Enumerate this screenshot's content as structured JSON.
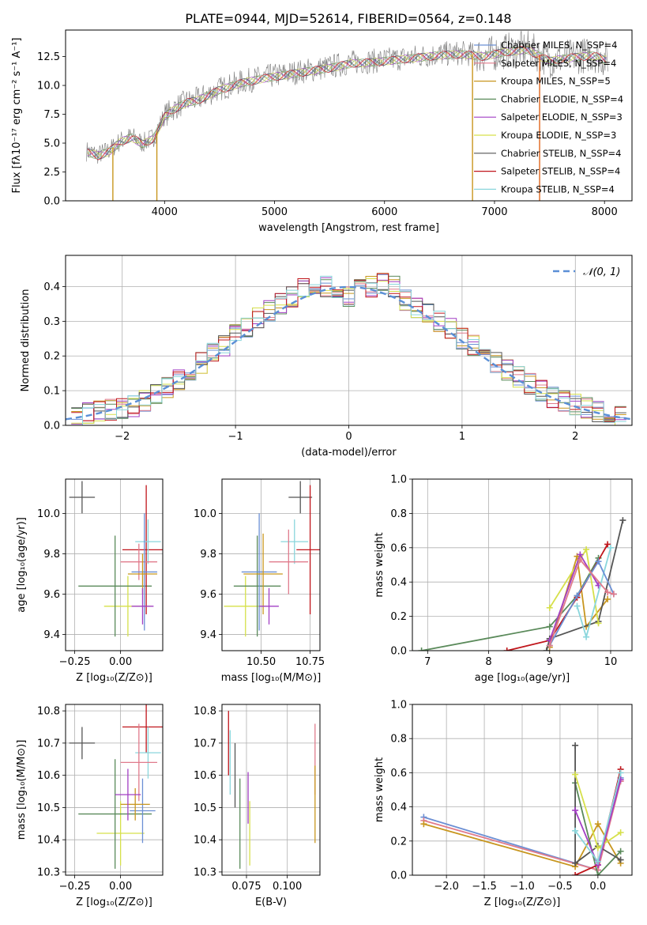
{
  "figure": {
    "title": "PLATE=0944, MJD=52614, FIBERID=0564, z=0.148"
  },
  "chart_data": [
    {
      "id": "spectrum",
      "type": "line",
      "xlabel": "wavelength [Angstrom, rest frame]",
      "ylabel": "Flux [fλ10⁻¹⁷ erg cm⁻² s⁻¹ A⁻¹]",
      "xlim": [
        3100,
        8250
      ],
      "ylim": [
        0,
        14.8
      ],
      "xticks": [
        4000,
        5000,
        6000,
        7000,
        8000
      ],
      "yticks": [
        0.0,
        2.5,
        5.0,
        7.5,
        10.0,
        12.5
      ],
      "grid": false,
      "legend_position": "upper-right",
      "series": [
        {
          "name": "Chabrier MILES, N_SSP=4",
          "color": "#6b8fd4"
        },
        {
          "name": "Salpeter MILES, N_SSP=4",
          "color": "#e07b8c"
        },
        {
          "name": "Kroupa MILES, N_SSP=5",
          "color": "#c8961e"
        },
        {
          "name": "Chabrier ELODIE, N_SSP=4",
          "color": "#5a8a5a"
        },
        {
          "name": "Salpeter ELODIE, N_SSP=3",
          "color": "#a23fc4"
        },
        {
          "name": "Kroupa ELODIE, N_SSP=3",
          "color": "#d6e04a"
        },
        {
          "name": "Chabrier STELIB, N_SSP=4",
          "color": "#555555"
        },
        {
          "name": "Salpeter STELIB, N_SSP=4",
          "color": "#c0151b"
        },
        {
          "name": "Kroupa STELIB, N_SSP=4",
          "color": "#8ad6dc"
        }
      ],
      "data_flux": {
        "x": [
          3300,
          3400,
          3500,
          3600,
          3700,
          3800,
          3900,
          4000,
          4100,
          4200,
          4300,
          4500,
          4700,
          4900,
          5100,
          5300,
          5500,
          5700,
          5900,
          6100,
          6300,
          6500,
          6700,
          6900,
          7100,
          7300,
          7500,
          7700,
          7900,
          8000
        ],
        "y": [
          4.3,
          4.0,
          4.4,
          5.2,
          5.6,
          5.0,
          5.5,
          7.4,
          8.1,
          8.6,
          8.8,
          9.7,
          10.3,
          10.7,
          11.0,
          11.3,
          11.6,
          12.0,
          12.1,
          12.3,
          12.5,
          12.7,
          12.8,
          12.6,
          13.0,
          13.2,
          12.2,
          12.5,
          12.7,
          12.3
        ]
      }
    },
    {
      "id": "residuals",
      "type": "bar",
      "xlabel": "(data-model)/error",
      "ylabel": "Normed distribution",
      "xlim": [
        -2.5,
        2.5
      ],
      "ylim": [
        0,
        0.49
      ],
      "xticks": [
        -2,
        -1,
        0,
        1,
        2
      ],
      "yticks": [
        0.0,
        0.1,
        0.2,
        0.3,
        0.4
      ],
      "grid": true,
      "legend_position": "upper-right",
      "reference_curve": {
        "name": "𝒩(0, 1)",
        "color": "#5b8fd6"
      },
      "bin_centers": [
        -2.4,
        -2.3,
        -2.2,
        -2.1,
        -2.0,
        -1.9,
        -1.8,
        -1.7,
        -1.6,
        -1.5,
        -1.4,
        -1.3,
        -1.2,
        -1.1,
        -1.0,
        -0.9,
        -0.8,
        -0.7,
        -0.6,
        -0.5,
        -0.4,
        -0.3,
        -0.2,
        -0.1,
        0.0,
        0.1,
        0.2,
        0.3,
        0.4,
        0.5,
        0.6,
        0.7,
        0.8,
        0.9,
        1.0,
        1.1,
        1.2,
        1.3,
        1.4,
        1.5,
        1.6,
        1.7,
        1.8,
        1.9,
        2.0,
        2.1,
        2.2,
        2.3,
        2.4
      ],
      "values": [
        0.025,
        0.035,
        0.04,
        0.045,
        0.05,
        0.055,
        0.07,
        0.09,
        0.11,
        0.13,
        0.16,
        0.18,
        0.21,
        0.23,
        0.26,
        0.28,
        0.31,
        0.33,
        0.35,
        0.37,
        0.4,
        0.41,
        0.4,
        0.38,
        0.37,
        0.39,
        0.4,
        0.41,
        0.4,
        0.36,
        0.34,
        0.32,
        0.3,
        0.28,
        0.25,
        0.23,
        0.2,
        0.18,
        0.16,
        0.14,
        0.12,
        0.1,
        0.08,
        0.07,
        0.06,
        0.05,
        0.04,
        0.03,
        0.025
      ]
    },
    {
      "id": "age_vs_Z",
      "type": "scatter",
      "xlabel": "Z [log₁₀(Z/Z⊙)]",
      "ylabel": "age  [log₁₀(age/yr)]",
      "xlim": [
        -0.3,
        0.23
      ],
      "ylim": [
        9.32,
        10.17
      ],
      "xticks": [
        -0.25,
        0.0
      ],
      "xticklabels": [
        "−0.25",
        "0.00"
      ],
      "yticks": [
        9.4,
        9.6,
        9.8,
        10.0
      ],
      "grid": true,
      "points": [
        {
          "x": -0.21,
          "y": 10.08,
          "xerr": 0.07,
          "yerr": 0.08,
          "color": "#555555"
        },
        {
          "x": 0.04,
          "y": 9.54,
          "xerr": 0.13,
          "yerr": 0.15,
          "color": "#d6e04a"
        },
        {
          "x": -0.03,
          "y": 9.64,
          "xerr": 0.2,
          "yerr": 0.25,
          "color": "#5a8a5a"
        },
        {
          "x": 0.14,
          "y": 9.82,
          "xerr": 0.13,
          "yerr": 0.32,
          "color": "#c0151b"
        },
        {
          "x": 0.15,
          "y": 9.86,
          "xerr": 0.07,
          "yerr": 0.11,
          "color": "#8ad6dc"
        },
        {
          "x": 0.1,
          "y": 9.76,
          "xerr": 0.1,
          "yerr": 0.09,
          "color": "#e07b8c"
        },
        {
          "x": 0.13,
          "y": 9.71,
          "xerr": 0.07,
          "yerr": 0.29,
          "color": "#6b8fd4"
        },
        {
          "x": 0.12,
          "y": 9.7,
          "xerr": 0.08,
          "yerr": 0.1,
          "color": "#c8961e"
        },
        {
          "x": 0.12,
          "y": 9.54,
          "xerr": 0.06,
          "yerr": 0.09,
          "color": "#a23fc4"
        }
      ]
    },
    {
      "id": "age_vs_mass",
      "type": "scatter",
      "xlabel": "mass [log₁₀(M/M⊙)]",
      "ylabel": "",
      "xlim": [
        10.3,
        10.8
      ],
      "ylim": [
        9.32,
        10.17
      ],
      "xticks": [
        10.5,
        10.75
      ],
      "xticklabels": [
        "10.50",
        "10.75"
      ],
      "yticks": [
        9.4,
        9.6,
        9.8,
        10.0
      ],
      "grid": true,
      "points": [
        {
          "x": 10.7,
          "y": 10.08,
          "xerr": 0.06,
          "yerr": 0.08,
          "color": "#555555"
        },
        {
          "x": 10.42,
          "y": 9.54,
          "xerr": 0.11,
          "yerr": 0.15,
          "color": "#d6e04a"
        },
        {
          "x": 10.48,
          "y": 9.64,
          "xerr": 0.12,
          "yerr": 0.25,
          "color": "#5a8a5a"
        },
        {
          "x": 10.75,
          "y": 9.82,
          "xerr": 0.07,
          "yerr": 0.32,
          "color": "#c0151b"
        },
        {
          "x": 10.67,
          "y": 9.86,
          "xerr": 0.07,
          "yerr": 0.11,
          "color": "#8ad6dc"
        },
        {
          "x": 10.64,
          "y": 9.76,
          "xerr": 0.1,
          "yerr": 0.16,
          "color": "#e07b8c"
        },
        {
          "x": 10.49,
          "y": 9.71,
          "xerr": 0.09,
          "yerr": 0.29,
          "color": "#6b8fd4"
        },
        {
          "x": 10.51,
          "y": 9.7,
          "xerr": 0.1,
          "yerr": 0.2,
          "color": "#c8961e"
        },
        {
          "x": 10.54,
          "y": 9.54,
          "xerr": 0.05,
          "yerr": 0.09,
          "color": "#a23fc4"
        }
      ]
    },
    {
      "id": "massweight_vs_age",
      "type": "line",
      "xlabel": "age  [log₁₀(age/yr)]",
      "ylabel": "mass weight",
      "xlim": [
        6.75,
        10.35
      ],
      "ylim": [
        0,
        1.0
      ],
      "xticks": [
        7,
        8,
        9,
        10
      ],
      "yticks": [
        0.0,
        0.2,
        0.4,
        0.6,
        0.8,
        1.0
      ],
      "grid": true,
      "series": [
        {
          "color": "#5a8a5a",
          "x": [
            6.9,
            9.0,
            9.45,
            9.8
          ],
          "y": [
            0.0,
            0.14,
            0.32,
            0.54
          ]
        },
        {
          "color": "#c8961e",
          "x": [
            9.0,
            9.45,
            9.6,
            9.95
          ],
          "y": [
            0.02,
            0.55,
            0.14,
            0.3
          ]
        },
        {
          "color": "#c0151b",
          "x": [
            8.3,
            9.0,
            9.45,
            9.95
          ],
          "y": [
            0.0,
            0.06,
            0.31,
            0.62
          ]
        },
        {
          "color": "#555555",
          "x": [
            8.95,
            9.0,
            9.8,
            10.2
          ],
          "y": [
            0.0,
            0.07,
            0.17,
            0.76
          ]
        },
        {
          "color": "#d6e04a",
          "x": [
            9.0,
            9.6,
            9.8
          ],
          "y": [
            0.25,
            0.59,
            0.16
          ]
        },
        {
          "color": "#a23fc4",
          "x": [
            9.0,
            9.5,
            9.8
          ],
          "y": [
            0.06,
            0.56,
            0.38
          ]
        },
        {
          "color": "#8ad6dc",
          "x": [
            9.45,
            9.6,
            10.0
          ],
          "y": [
            0.26,
            0.08,
            0.6
          ]
        },
        {
          "color": "#6b8fd4",
          "x": [
            9.0,
            9.45,
            9.8,
            10.05
          ],
          "y": [
            0.03,
            0.32,
            0.52,
            0.33
          ]
        },
        {
          "color": "#e07b8c",
          "x": [
            9.0,
            9.5,
            9.95,
            10.05
          ],
          "y": [
            0.03,
            0.53,
            0.34,
            0.33
          ]
        }
      ]
    },
    {
      "id": "mass_vs_Z",
      "type": "scatter",
      "xlabel": "Z [log₁₀(Z/Z⊙)]",
      "ylabel": "mass [log₁₀(M/M⊙)]",
      "xlim": [
        -0.3,
        0.23
      ],
      "ylim": [
        10.29,
        10.82
      ],
      "xticks": [
        -0.25,
        0.0
      ],
      "xticklabels": [
        "−0.25",
        "0.00"
      ],
      "yticks": [
        10.3,
        10.4,
        10.5,
        10.6,
        10.7,
        10.8
      ],
      "grid": true,
      "points": [
        {
          "x": -0.21,
          "y": 10.7,
          "xerr": 0.07,
          "yerr": 0.05,
          "color": "#555555"
        },
        {
          "x": 0.0,
          "y": 10.42,
          "xerr": 0.13,
          "yerr": 0.1,
          "color": "#d6e04a"
        },
        {
          "x": -0.03,
          "y": 10.48,
          "xerr": 0.2,
          "yerr": 0.17,
          "color": "#5a8a5a"
        },
        {
          "x": 0.14,
          "y": 10.75,
          "xerr": 0.13,
          "yerr": 0.08,
          "color": "#c0151b"
        },
        {
          "x": 0.15,
          "y": 10.67,
          "xerr": 0.07,
          "yerr": 0.08,
          "color": "#8ad6dc"
        },
        {
          "x": 0.1,
          "y": 10.64,
          "xerr": 0.1,
          "yerr": 0.12,
          "color": "#e07b8c"
        },
        {
          "x": 0.12,
          "y": 10.49,
          "xerr": 0.07,
          "yerr": 0.1,
          "color": "#6b8fd4"
        },
        {
          "x": 0.08,
          "y": 10.51,
          "xerr": 0.08,
          "yerr": 0.05,
          "color": "#c8961e"
        },
        {
          "x": 0.04,
          "y": 10.54,
          "xerr": 0.07,
          "yerr": 0.08,
          "color": "#a23fc4"
        }
      ]
    },
    {
      "id": "mass_vs_EBV",
      "type": "scatter",
      "xlabel": "E(B-V)",
      "ylabel": "",
      "xlim": [
        0.06,
        0.12
      ],
      "ylim": [
        10.29,
        10.82
      ],
      "xticks": [
        0.075,
        0.1
      ],
      "xticklabels": [
        "0.075",
        "0.100"
      ],
      "yticks": [
        10.3,
        10.4,
        10.5,
        10.6,
        10.7,
        10.8
      ],
      "grid": true,
      "points": [
        {
          "x": 0.064,
          "y": 10.7,
          "yerr": 0.1,
          "color": "#c0151b"
        },
        {
          "x": 0.065,
          "y": 10.64,
          "yerr": 0.1,
          "color": "#8ad6dc"
        },
        {
          "x": 0.068,
          "y": 10.6,
          "yerr": 0.1,
          "color": "#555555"
        },
        {
          "x": 0.071,
          "y": 10.45,
          "yerr": 0.14,
          "color": "#5a8a5a"
        },
        {
          "x": 0.076,
          "y": 10.53,
          "yerr": 0.08,
          "color": "#a23fc4"
        },
        {
          "x": 0.077,
          "y": 10.42,
          "yerr": 0.1,
          "color": "#d6e04a"
        },
        {
          "x": 0.117,
          "y": 10.65,
          "yerr": 0.11,
          "color": "#e07b8c"
        },
        {
          "x": 0.117,
          "y": 10.51,
          "yerr": 0.12,
          "color": "#c8961e"
        }
      ]
    },
    {
      "id": "massweight_vs_Z",
      "type": "line",
      "xlabel": "Z [log₁₀(Z/Z⊙)]",
      "ylabel": "mass weight",
      "xlim": [
        -2.45,
        0.45
      ],
      "ylim": [
        0,
        1.0
      ],
      "xticks": [
        -2.0,
        -1.5,
        -1.0,
        -0.5,
        0.0
      ],
      "xticklabels": [
        "−2.0",
        "−1.5",
        "−1.0",
        "−0.5",
        "0.0"
      ],
      "yticks": [
        0.0,
        0.2,
        0.4,
        0.6,
        0.8,
        1.0
      ],
      "grid": true,
      "series": [
        {
          "color": "#6b8fd4",
          "x": [
            -2.3,
            0.0,
            0.3
          ],
          "y": [
            0.34,
            0.03,
            0.57
          ]
        },
        {
          "color": "#e07b8c",
          "x": [
            -2.3,
            0.0,
            0.3
          ],
          "y": [
            0.32,
            0.03,
            0.55
          ]
        },
        {
          "color": "#c8961e",
          "x": [
            -2.3,
            -0.3,
            0.0,
            0.3
          ],
          "y": [
            0.3,
            0.05,
            0.3,
            0.07
          ]
        },
        {
          "color": "#5a8a5a",
          "x": [
            -0.3,
            0.0,
            0.3
          ],
          "y": [
            0.54,
            0.0,
            0.14
          ]
        },
        {
          "color": "#555555",
          "x": [
            -0.3,
            -0.3,
            0.0,
            0.3
          ],
          "y": [
            0.76,
            0.07,
            0.17,
            0.09
          ]
        },
        {
          "color": "#c0151b",
          "x": [
            -0.3,
            0.0,
            0.3
          ],
          "y": [
            0.0,
            0.06,
            0.62
          ]
        },
        {
          "color": "#d6e04a",
          "x": [
            -0.3,
            0.0,
            0.3
          ],
          "y": [
            0.59,
            0.16,
            0.25
          ]
        },
        {
          "color": "#a23fc4",
          "x": [
            -0.3,
            0.0,
            0.3
          ],
          "y": [
            0.38,
            0.06,
            0.56
          ]
        },
        {
          "color": "#8ad6dc",
          "x": [
            -0.3,
            0.0,
            0.3
          ],
          "y": [
            0.26,
            0.08,
            0.6
          ]
        }
      ]
    }
  ]
}
